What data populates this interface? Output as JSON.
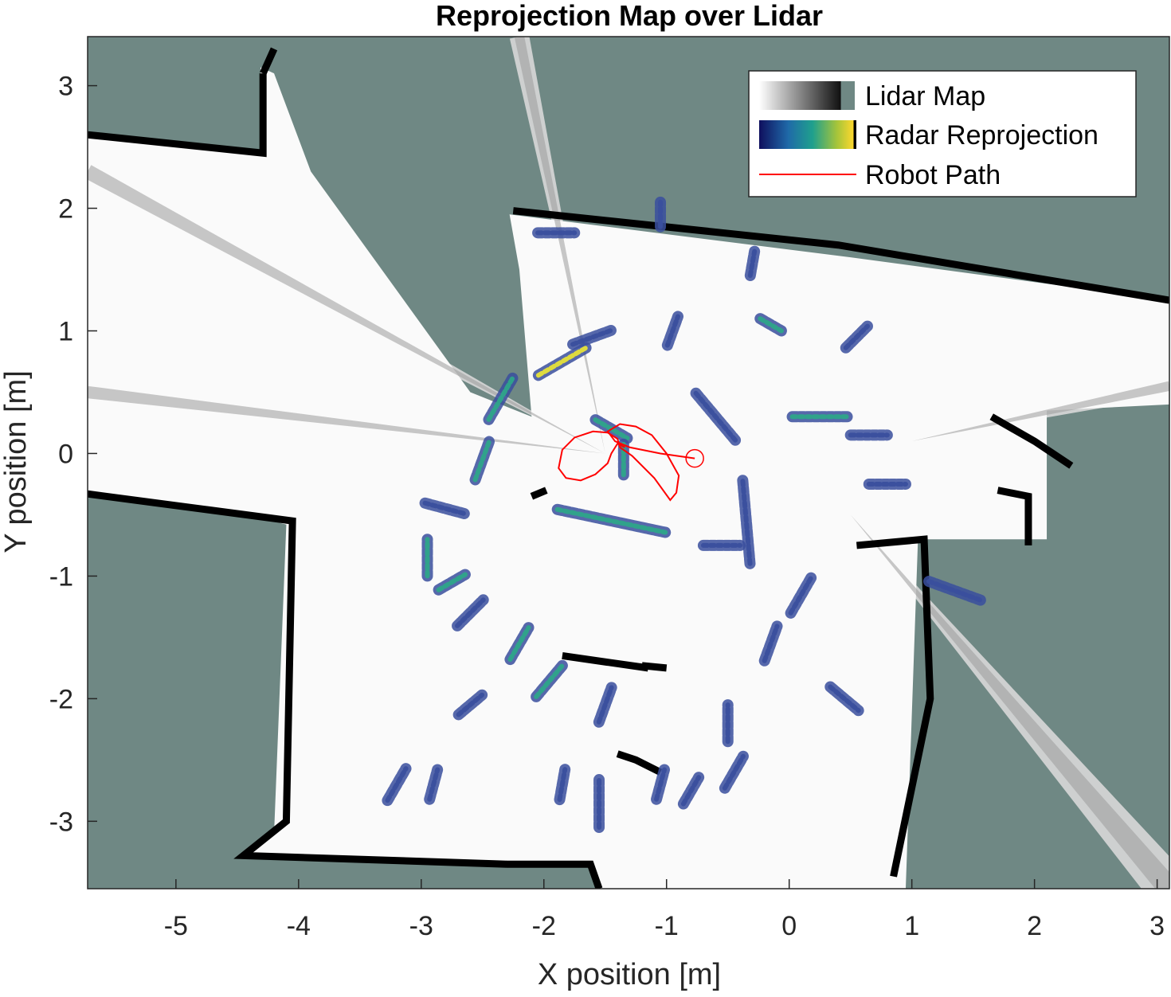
{
  "colors": {
    "unknown_space": "#6f8884",
    "free_space": "#fafafa",
    "occupied": "#000000",
    "radar_low": "#3a4f9e",
    "radar_mid": "#2fa68a",
    "radar_high": "#e6e23a",
    "robot_path": "#ff0000",
    "axis": "#262626"
  },
  "chart_data": {
    "type": "heatmap",
    "title": "Reprojection Map over Lidar",
    "xlabel": "X position [m]",
    "ylabel": "Y position [m]",
    "xlim": [
      -5.72,
      3.1
    ],
    "ylim": [
      -3.55,
      3.4
    ],
    "xticks": [
      -5,
      -4,
      -3,
      -2,
      -1,
      0,
      1,
      2,
      3
    ],
    "yticks": [
      3,
      2,
      1,
      0,
      -1,
      -2,
      -3
    ],
    "grid": false,
    "legend": {
      "placement": "top-right",
      "entries": [
        {
          "label": "Lidar Map",
          "swatch": "gray-gradient"
        },
        {
          "label": "Radar Reprojection",
          "swatch": "parula-gradient"
        },
        {
          "label": "Robot Path",
          "swatch": "red-line"
        }
      ]
    },
    "lidar_map": {
      "free_region": [
        [
          -4.31,
          3.15
        ],
        [
          -4.31,
          2.46
        ],
        [
          -5.72,
          2.6
        ],
        [
          -5.72,
          0.38
        ],
        [
          -5.72,
          -0.32
        ],
        [
          -4.4,
          -0.5
        ],
        [
          -4.1,
          -0.58
        ],
        [
          -4.2,
          -3.1
        ],
        [
          -4.4,
          -3.27
        ],
        [
          -4.45,
          -3.28
        ],
        [
          -2.3,
          -3.37
        ],
        [
          -1.62,
          -3.35
        ],
        [
          -1.55,
          -3.55
        ],
        [
          0.8,
          -3.55
        ],
        [
          0.95,
          -3.55
        ],
        [
          1.05,
          -0.7
        ],
        [
          1.1,
          -0.7
        ],
        [
          2.1,
          -0.7
        ],
        [
          2.1,
          0.35
        ],
        [
          3.1,
          0.4
        ],
        [
          3.1,
          1.3
        ],
        [
          3.1,
          1.25
        ],
        [
          0.5,
          1.6
        ],
        [
          -2.28,
          1.95
        ],
        [
          -2.2,
          1.5
        ],
        [
          -2.1,
          0.3
        ],
        [
          -2.6,
          0.5
        ],
        [
          -3.9,
          2.3
        ],
        [
          -4.2,
          3.1
        ]
      ],
      "walls": [
        [
          [
            -5.72,
            2.6
          ],
          [
            -4.29,
            2.45
          ],
          [
            -4.29,
            3.1
          ]
        ],
        [
          [
            -4.29,
            3.1
          ],
          [
            -4.2,
            3.3
          ]
        ],
        [
          [
            -2.25,
            1.98
          ],
          [
            0.4,
            1.7
          ],
          [
            3.1,
            1.25
          ]
        ],
        [
          [
            -5.72,
            -0.33
          ],
          [
            -4.05,
            -0.55
          ],
          [
            -4.1,
            -3.0
          ],
          [
            -4.45,
            -3.28
          ],
          [
            -2.3,
            -3.35
          ],
          [
            -1.62,
            -3.35
          ],
          [
            -1.55,
            -3.55
          ]
        ],
        [
          [
            -1.2,
            -1.73
          ],
          [
            -1.0,
            -1.75
          ]
        ],
        [
          [
            -1.85,
            -1.65
          ],
          [
            -1.15,
            -1.75
          ]
        ],
        [
          [
            -1.98,
            -0.3
          ],
          [
            -2.1,
            -0.35
          ]
        ],
        [
          [
            0.55,
            -0.75
          ],
          [
            1.1,
            -0.7
          ],
          [
            1.15,
            -2.0
          ],
          [
            0.85,
            -3.45
          ]
        ],
        [
          [
            1.7,
            -0.3
          ],
          [
            1.95,
            -0.35
          ],
          [
            1.95,
            -0.75
          ]
        ],
        [
          [
            1.65,
            0.3
          ],
          [
            2.0,
            0.1
          ],
          [
            2.3,
            -0.1
          ]
        ],
        [
          [
            -1.4,
            -2.45
          ],
          [
            -1.25,
            -2.5
          ],
          [
            -1.05,
            -2.6
          ]
        ]
      ],
      "shadow_rays": [
        {
          "from": [
            -1.5,
            0.0
          ],
          "to": [
            -2.2,
            3.4
          ],
          "width": 0.08
        },
        {
          "from": [
            -1.5,
            0.0
          ],
          "to": [
            -5.72,
            2.3
          ],
          "width": 0.12
        },
        {
          "from": [
            -1.5,
            0.0
          ],
          "to": [
            -5.72,
            0.5
          ],
          "width": 0.1
        },
        {
          "from": [
            0.5,
            -0.5
          ],
          "to": [
            3.1,
            -3.55
          ],
          "width": 0.18
        },
        {
          "from": [
            1.0,
            0.1
          ],
          "to": [
            3.1,
            0.55
          ],
          "width": 0.08
        }
      ]
    },
    "radar_reprojection": {
      "value_range": [
        0,
        1
      ],
      "clusters": [
        {
          "x": -1.85,
          "y": 0.75,
          "len": 0.45,
          "angle": 30,
          "v": 0.7
        },
        {
          "x": -1.6,
          "y": 0.95,
          "len": 0.35,
          "angle": 20,
          "v": 0.45
        },
        {
          "x": -2.35,
          "y": 0.45,
          "len": 0.4,
          "angle": 60,
          "v": 0.55
        },
        {
          "x": -1.45,
          "y": 0.2,
          "len": 0.3,
          "angle": -30,
          "v": 0.5
        },
        {
          "x": -1.35,
          "y": -0.05,
          "len": 0.25,
          "angle": 90,
          "v": 0.5
        },
        {
          "x": -1.45,
          "y": -0.55,
          "len": 0.9,
          "angle": -12,
          "v": 0.55
        },
        {
          "x": -2.5,
          "y": -0.05,
          "len": 0.35,
          "angle": 70,
          "v": 0.6
        },
        {
          "x": -0.6,
          "y": 0.3,
          "len": 0.5,
          "angle": -50,
          "v": 0.45
        },
        {
          "x": -0.35,
          "y": -0.55,
          "len": 0.7,
          "angle": 95,
          "v": 0.4
        },
        {
          "x": -0.55,
          "y": -0.75,
          "len": 0.3,
          "angle": 0,
          "v": 0.45
        },
        {
          "x": -0.95,
          "y": 1.0,
          "len": 0.25,
          "angle": 70,
          "v": 0.45
        },
        {
          "x": -0.3,
          "y": 1.55,
          "len": 0.2,
          "angle": 80,
          "v": 0.4
        },
        {
          "x": -0.15,
          "y": 1.05,
          "len": 0.2,
          "angle": -30,
          "v": 0.55
        },
        {
          "x": 0.55,
          "y": 0.95,
          "len": 0.25,
          "angle": 45,
          "v": 0.45
        },
        {
          "x": 0.25,
          "y": 0.3,
          "len": 0.45,
          "angle": 0,
          "v": 0.5
        },
        {
          "x": 0.65,
          "y": 0.15,
          "len": 0.3,
          "angle": 0,
          "v": 0.4
        },
        {
          "x": 0.8,
          "y": -0.25,
          "len": 0.3,
          "angle": 0,
          "v": 0.4
        },
        {
          "x": -2.8,
          "y": -0.45,
          "len": 0.35,
          "angle": -15,
          "v": 0.4
        },
        {
          "x": -2.95,
          "y": -0.85,
          "len": 0.3,
          "angle": 90,
          "v": 0.5
        },
        {
          "x": -2.75,
          "y": -1.05,
          "len": 0.25,
          "angle": 30,
          "v": 0.55
        },
        {
          "x": -2.6,
          "y": -1.3,
          "len": 0.3,
          "angle": 45,
          "v": 0.45
        },
        {
          "x": -2.2,
          "y": -1.55,
          "len": 0.3,
          "angle": 60,
          "v": 0.5
        },
        {
          "x": -1.95,
          "y": -1.85,
          "len": 0.35,
          "angle": 50,
          "v": 0.5
        },
        {
          "x": -2.6,
          "y": -2.05,
          "len": 0.25,
          "angle": 40,
          "v": 0.45
        },
        {
          "x": -1.5,
          "y": -2.05,
          "len": 0.3,
          "angle": 70,
          "v": 0.4
        },
        {
          "x": -0.5,
          "y": -2.2,
          "len": 0.3,
          "angle": 90,
          "v": 0.45
        },
        {
          "x": -0.15,
          "y": -1.55,
          "len": 0.3,
          "angle": 70,
          "v": 0.4
        },
        {
          "x": 0.1,
          "y": -1.15,
          "len": 0.35,
          "angle": 60,
          "v": 0.4
        },
        {
          "x": 0.45,
          "y": -2.0,
          "len": 0.3,
          "angle": -40,
          "v": 0.4
        },
        {
          "x": -3.2,
          "y": -2.7,
          "len": 0.3,
          "angle": 60,
          "v": 0.4
        },
        {
          "x": -2.9,
          "y": -2.7,
          "len": 0.25,
          "angle": 75,
          "v": 0.4
        },
        {
          "x": -1.85,
          "y": -2.7,
          "len": 0.25,
          "angle": 80,
          "v": 0.4
        },
        {
          "x": -1.55,
          "y": -2.85,
          "len": 0.4,
          "angle": 90,
          "v": 0.4
        },
        {
          "x": -1.05,
          "y": -2.7,
          "len": 0.25,
          "angle": 75,
          "v": 0.45
        },
        {
          "x": -0.8,
          "y": -2.75,
          "len": 0.25,
          "angle": 60,
          "v": 0.45
        },
        {
          "x": -0.45,
          "y": -2.6,
          "len": 0.3,
          "angle": 60,
          "v": 0.45
        },
        {
          "x": 1.35,
          "y": -1.12,
          "len": 0.45,
          "angle": -20,
          "v": 0.4
        },
        {
          "x": -1.05,
          "y": 1.95,
          "len": 0.2,
          "angle": 90,
          "v": 0.4
        },
        {
          "x": -1.9,
          "y": 1.8,
          "len": 0.3,
          "angle": 0,
          "v": 0.35
        }
      ]
    },
    "robot_path": {
      "x": [
        -0.77,
        -1.05,
        -1.3,
        -1.42,
        -1.48,
        -1.38,
        -1.25,
        -1.12,
        -1.0,
        -0.9,
        -0.92,
        -0.97,
        -1.1,
        -1.28,
        -1.38,
        -1.4,
        -1.48,
        -1.6,
        -1.75,
        -1.85,
        -1.88,
        -1.82,
        -1.7,
        -1.58,
        -1.48,
        -1.45,
        -1.4,
        -1.34
      ],
      "y": [
        -0.04,
        0.0,
        0.05,
        0.1,
        0.18,
        0.24,
        0.22,
        0.15,
        0.0,
        -0.18,
        -0.32,
        -0.38,
        -0.2,
        -0.02,
        0.05,
        0.12,
        0.17,
        0.18,
        0.13,
        0.03,
        -0.12,
        -0.2,
        -0.22,
        -0.17,
        -0.08,
        0.0,
        0.08,
        0.05
      ]
    },
    "robot_marker": {
      "x": -0.77,
      "y": -0.04,
      "shape": "circle"
    }
  }
}
